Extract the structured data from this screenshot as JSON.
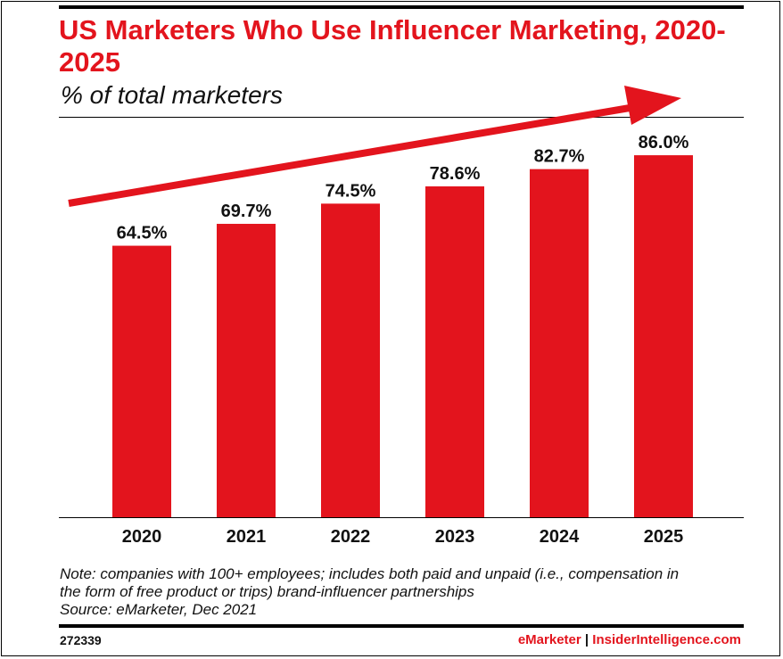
{
  "header": {
    "title": "US Marketers Who Use Influencer Marketing, 2020-2025",
    "subtitle": "% of total marketers"
  },
  "chart_data": {
    "type": "bar",
    "title": "US Marketers Who Use Influencer Marketing, 2020-2025",
    "subtitle": "% of total marketers",
    "categories": [
      "2020",
      "2021",
      "2022",
      "2023",
      "2024",
      "2025"
    ],
    "values": [
      64.5,
      69.7,
      74.5,
      78.6,
      82.7,
      86.0
    ],
    "value_labels": [
      "64.5%",
      "69.7%",
      "74.5%",
      "78.6%",
      "82.7%",
      "86.0%"
    ],
    "xlabel": "",
    "ylabel": "",
    "ylim": [
      0,
      100
    ],
    "grid": false,
    "legend": "none",
    "bar_color": "#e3141d",
    "annotations": [
      {
        "type": "trend-arrow",
        "color": "#e3141d",
        "direction": "up-right"
      }
    ]
  },
  "footer": {
    "note_line1": "Note: companies with 100+ employees; includes both paid and unpaid (i.e., compensation in",
    "note_line2": "the form of free product or trips) brand-influencer partnerships",
    "source": "Source: eMarketer, Dec 2021",
    "chart_id": "272339",
    "brand_primary": "eMarketer",
    "brand_separator": "|",
    "brand_secondary": "InsiderIntelligence.com"
  }
}
